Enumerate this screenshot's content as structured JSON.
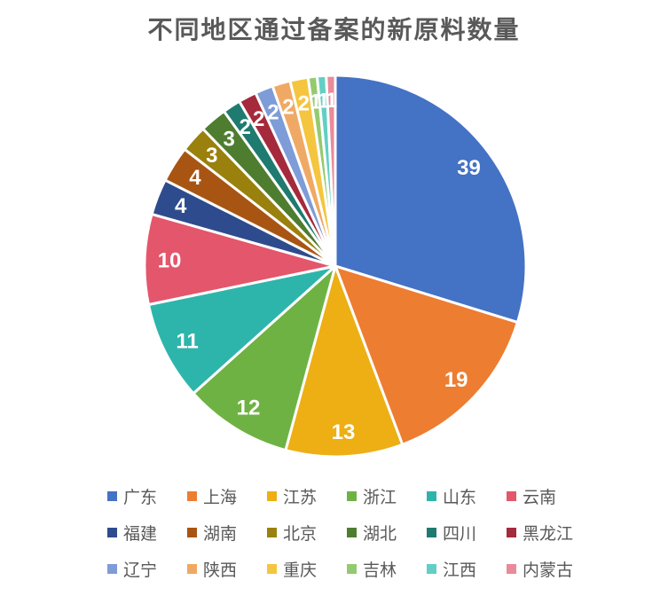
{
  "title": "不同地区通过备案的新原料数量",
  "chart_data": {
    "type": "pie",
    "title": "不同地区通过备案的新原料数量",
    "total": 131,
    "start_angle_deg": 0,
    "direction": "clockwise",
    "legend_position": "bottom",
    "slice_border_color": "#FFFFFF",
    "label_style": "value-inside-end",
    "series": [
      {
        "label": "广东",
        "value": 39,
        "color": "#4472C4"
      },
      {
        "label": "上海",
        "value": 19,
        "color": "#ED7D31"
      },
      {
        "label": "江苏",
        "value": 13,
        "color": "#EDAF14"
      },
      {
        "label": "浙江",
        "value": 12,
        "color": "#6FB244"
      },
      {
        "label": "山东",
        "value": 11,
        "color": "#2EB5AB"
      },
      {
        "label": "云南",
        "value": 10,
        "color": "#E4566B"
      },
      {
        "label": "福建",
        "value": 4,
        "color": "#2E4C8D"
      },
      {
        "label": "湖南",
        "value": 4,
        "color": "#A85513"
      },
      {
        "label": "北京",
        "value": 3,
        "color": "#9A810D"
      },
      {
        "label": "湖北",
        "value": 3,
        "color": "#4E7D30"
      },
      {
        "label": "四川",
        "value": 2,
        "color": "#1F7A70"
      },
      {
        "label": "黑龙江",
        "value": 2,
        "color": "#A42A3C"
      },
      {
        "label": "辽宁",
        "value": 2,
        "color": "#7E9CD8"
      },
      {
        "label": "陕西",
        "value": 2,
        "color": "#F0A965"
      },
      {
        "label": "重庆",
        "value": 2,
        "color": "#F5C53F"
      },
      {
        "label": "吉林",
        "value": 1,
        "color": "#94CA6F"
      },
      {
        "label": "江西",
        "value": 1,
        "color": "#62CFC5"
      },
      {
        "label": "内蒙古",
        "value": 1,
        "color": "#E98B99"
      }
    ]
  },
  "colors": {
    "background": "#FFFFFF",
    "title_text": "#595959",
    "legend_text": "#595959",
    "value_label_text": "#FFFFFF"
  }
}
